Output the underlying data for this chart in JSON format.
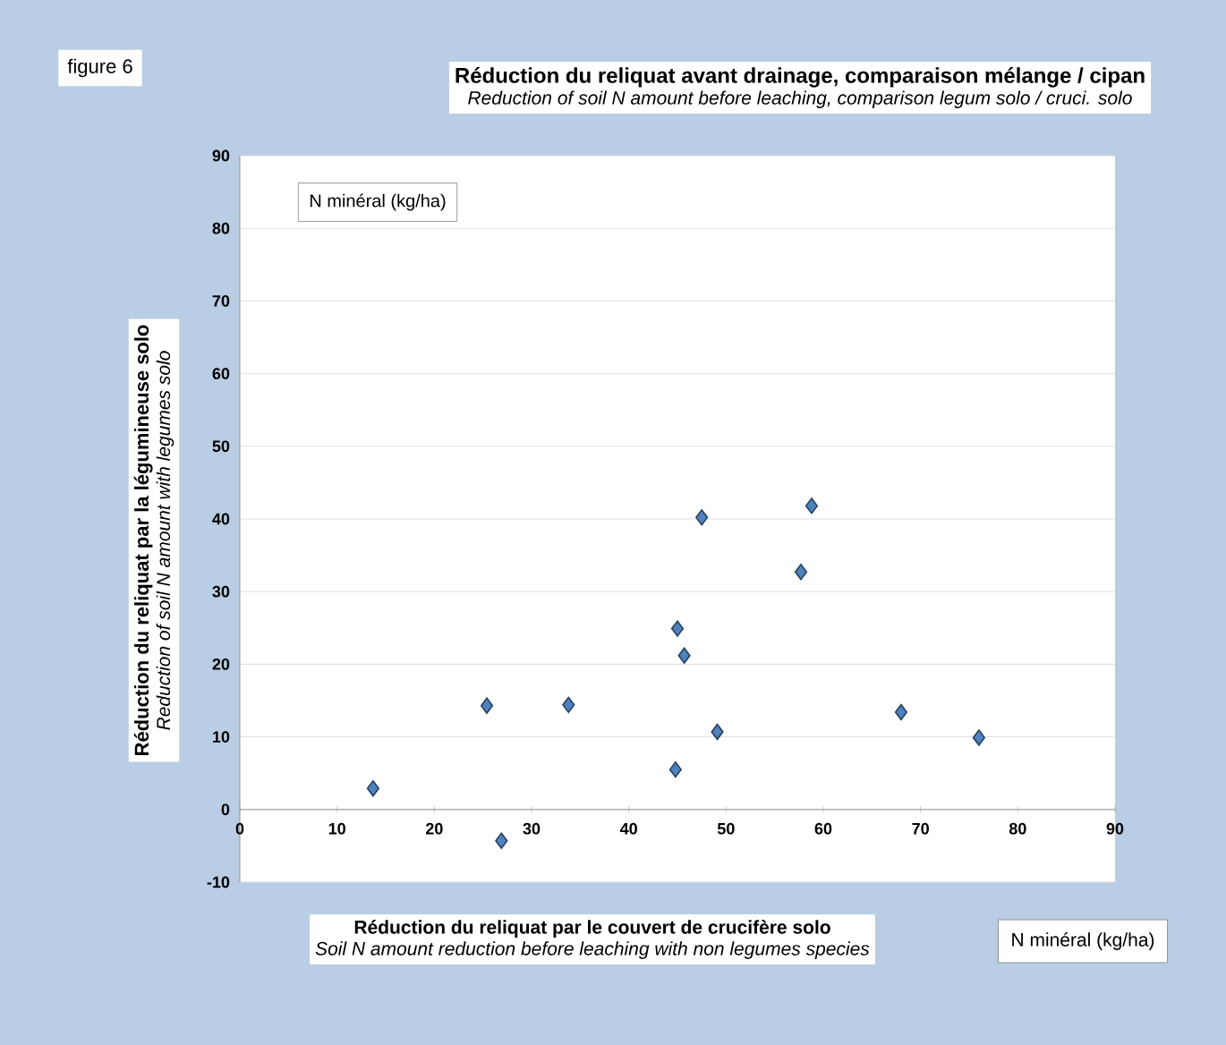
{
  "chart_data": {
    "type": "scatter",
    "title": "Réduction du reliquat avant drainage, comparaison mélange / cipan",
    "subtitle": "Reduction of soil N amount before leaching, comparison legum solo / cruci. solo",
    "xlabel": "Réduction du reliquat par le couvert de crucifère solo",
    "ylabel": "Réduction du reliquat par la légumineuse solo",
    "annotations": [
      "figure 6",
      "N minéral  (kg/ha)",
      "Reduction of soil N amount with legumes solo",
      "Soil N amount  reduction before leaching with non legumes species",
      "N minéral (kg/ha)"
    ],
    "x": [
      13.7,
      25.4,
      26.9,
      33.8,
      44.8,
      45.0,
      45.7,
      47.5,
      49.1,
      57.7,
      58.8,
      68.0,
      76.0
    ],
    "values": [
      2.9,
      14.3,
      -4.3,
      14.4,
      5.5,
      24.9,
      21.2,
      40.2,
      10.7,
      32.7,
      41.8,
      13.4,
      9.9
    ],
    "color": "#4f81bd",
    "marker": "diamond",
    "grid": "y",
    "xlim": [
      0,
      90
    ],
    "ylim": [
      -10,
      90
    ],
    "xticks": [
      0,
      10,
      20,
      30,
      40,
      50,
      60,
      70,
      80,
      90
    ],
    "yticks": [
      -10,
      0,
      10,
      20,
      30,
      40,
      50,
      60,
      70,
      80,
      90
    ]
  }
}
